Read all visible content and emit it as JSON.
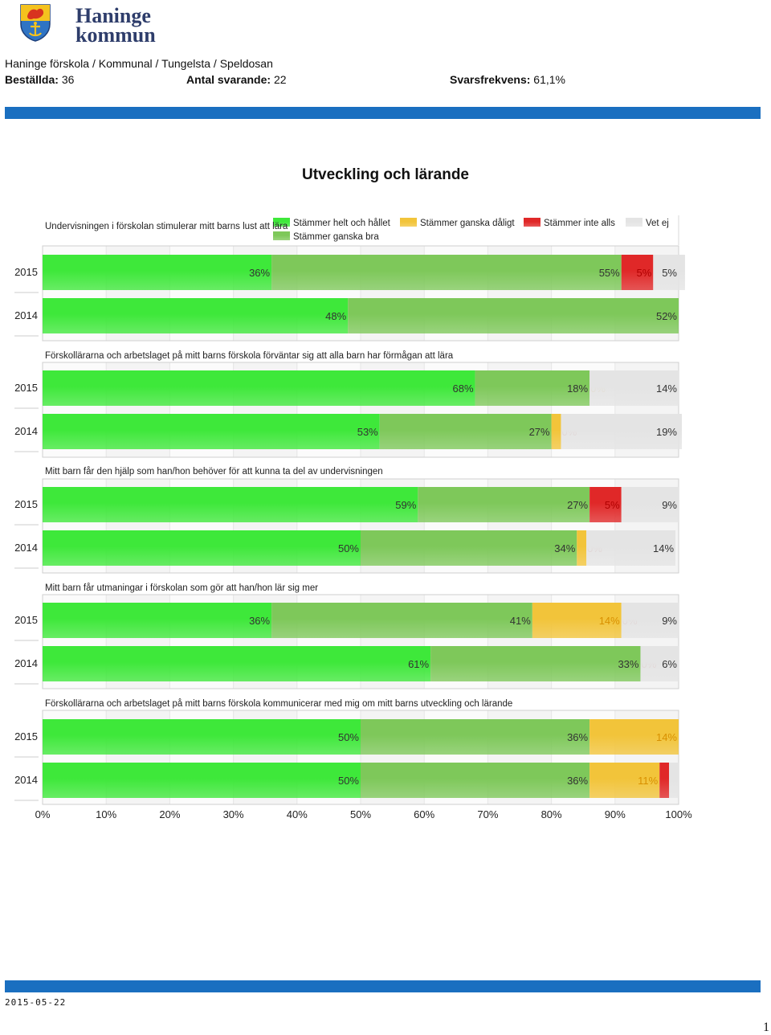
{
  "header": {
    "logo_text_line1": "Haninge",
    "logo_text_line2": "kommun",
    "breadcrumb": "Haninge förskola / Kommunal / Tungelsta / Speldosan",
    "ordered_label": "Beställda:",
    "ordered_value": "36",
    "respondents_label": "Antal svarande:",
    "respondents_value": "22",
    "response_rate_label": "Svarsfrekvens:",
    "response_rate_value": "61,1%"
  },
  "page_title": "Utveckling och lärande",
  "footer": {
    "date": "2015-05-22",
    "page_number": "1"
  },
  "colors": {
    "agree_fully": "#3ee83a",
    "agree_fairly": "#7ec85a",
    "disagree_fairly": "#f2c43a",
    "disagree_fully": "#e02828",
    "dont_know": "#e4e4e4",
    "accent_blue": "#1a6fc0"
  },
  "chart_data": {
    "type": "bar",
    "orientation": "horizontal-stacked",
    "legend": [
      {
        "name": "Stämmer helt och hållet",
        "color": "#3ee83a"
      },
      {
        "name": "Stämmer ganska bra",
        "color": "#7ec85a"
      },
      {
        "name": "Stämmer ganska dåligt",
        "color": "#f2c43a"
      },
      {
        "name": "Stämmer inte alls",
        "color": "#e02828"
      },
      {
        "name": "Vet ej",
        "color": "#e4e4e4"
      }
    ],
    "legend_placement": "top",
    "x_ticks": [
      "0%",
      "10%",
      "20%",
      "30%",
      "40%",
      "50%",
      "60%",
      "70%",
      "80%",
      "90%",
      "100%"
    ],
    "xlim": [
      0,
      100
    ],
    "grid": true,
    "questions": [
      {
        "question": "Undervisningen i förskolan stimulerar mitt barns lust att lära",
        "rows": [
          {
            "year": "2015",
            "values": [
              36,
              55,
              0,
              5,
              5
            ],
            "labels": [
              "36%",
              "55%",
              "",
              "5%",
              "5%"
            ]
          },
          {
            "year": "2014",
            "values": [
              48,
              52,
              0,
              0,
              0
            ],
            "labels": [
              "48%",
              "52%",
              "",
              "",
              ""
            ]
          }
        ]
      },
      {
        "question": "Förskollärarna och arbetslaget på mitt barns förskola förväntar sig att alla barn har förmågan att lära",
        "rows": [
          {
            "year": "2015",
            "values": [
              68,
              18,
              0,
              0,
              14
            ],
            "labels": [
              "68%",
              "18%",
              "0%",
              "",
              "14%"
            ]
          },
          {
            "year": "2014",
            "values": [
              53,
              27,
              1.5,
              0,
              19
            ],
            "labels": [
              "53%",
              "27%",
              "",
              "0%",
              "19%"
            ]
          }
        ]
      },
      {
        "question": "Mitt barn får den hjälp som han/hon behöver för att kunna ta del av undervisningen",
        "rows": [
          {
            "year": "2015",
            "values": [
              59,
              27,
              0,
              5,
              9
            ],
            "labels": [
              "59%",
              "27%",
              "",
              "5%",
              "9%"
            ]
          },
          {
            "year": "2014",
            "values": [
              50,
              34,
              1.5,
              0,
              14
            ],
            "labels": [
              "50%",
              "34%",
              "",
              "0%",
              "14%"
            ]
          }
        ]
      },
      {
        "question": "Mitt barn får utmaningar i förskolan som gör att han/hon lär sig mer",
        "rows": [
          {
            "year": "2015",
            "values": [
              36,
              41,
              14,
              0,
              9
            ],
            "labels": [
              "36%",
              "41%",
              "14%",
              "0%",
              "9%"
            ]
          },
          {
            "year": "2014",
            "values": [
              61,
              33,
              0,
              0,
              6
            ],
            "labels": [
              "61%",
              "33%",
              "",
              "0%",
              "6%"
            ]
          }
        ]
      },
      {
        "question": "Förskollärarna och arbetslaget på mitt barns förskola kommunicerar med mig om mitt barns utveckling och lärande",
        "rows": [
          {
            "year": "2015",
            "values": [
              50,
              36,
              14,
              0,
              0
            ],
            "labels": [
              "50%",
              "36%",
              "14%",
              "",
              ""
            ]
          },
          {
            "year": "2014",
            "values": [
              50,
              36,
              11,
              1.5,
              1.5
            ],
            "labels": [
              "50%",
              "36%",
              "11%",
              "",
              ""
            ]
          }
        ]
      }
    ]
  }
}
